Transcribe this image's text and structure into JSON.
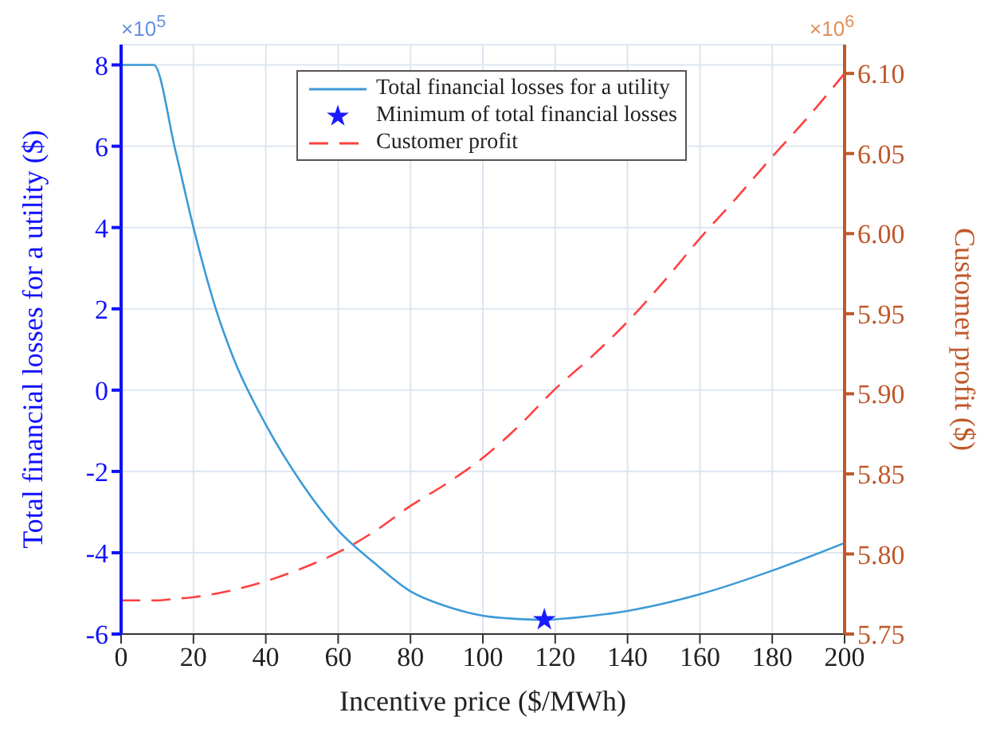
{
  "chart_data": {
    "type": "line",
    "xlabel": "Incentive price ($/MWh)",
    "ylabel": "Total financial losses for a utility ($)",
    "y2label": "Customer profit ($)",
    "annotations": [
      "×10$^{5}$",
      "×10$^{6}$"
    ],
    "xlim": [
      0,
      200
    ],
    "xticks": [
      0,
      20,
      40,
      60,
      80,
      100,
      120,
      140,
      160,
      180,
      200
    ],
    "ylim": [
      -6,
      8.5
    ],
    "yticks": [
      -6,
      -4,
      -2,
      0,
      2,
      4,
      6,
      8
    ],
    "y2lim": [
      5.75,
      6.118
    ],
    "y2ticks": [
      {
        "value": 5.75,
        "label": "5.75"
      },
      {
        "value": 5.8,
        "label": "5.80"
      },
      {
        "value": 5.85,
        "label": "5.85"
      },
      {
        "value": 5.9,
        "label": "5.90"
      },
      {
        "value": 5.95,
        "label": "5.95"
      },
      {
        "value": 6.0,
        "label": "6.00"
      },
      {
        "value": 6.05,
        "label": "6.05"
      },
      {
        "value": 6.1,
        "label": "6.10"
      }
    ],
    "grid": true,
    "legend": "top right",
    "series": [
      {
        "name": "Total financial losses for a utility",
        "color": "#3d9ad6",
        "line_style": "solid",
        "marker": "none",
        "x": [
          0,
          9,
          15,
          20,
          26,
          31,
          40,
          50,
          60,
          70,
          80,
          90,
          100,
          110,
          117,
          125,
          140,
          160,
          180,
          200
        ],
        "values": [
          8,
          8,
          5.9,
          4.0,
          2.05,
          0.8,
          -0.85,
          -2.3,
          -3.45,
          -4.25,
          -4.95,
          -5.32,
          -5.55,
          -5.63,
          -5.65,
          -5.6,
          -5.43,
          -5.02,
          -4.44,
          -3.76
        ]
      },
      {
        "name": "Minimum of total financial losses",
        "type": "scatter",
        "color": "#1a1aff",
        "marker": "star",
        "x": [
          117
        ],
        "values": [
          -5.65
        ]
      },
      {
        "name": "Customer profit",
        "type": "line",
        "axis": "y2",
        "color": "#ff4040",
        "line_style": "dashed",
        "marker": "none",
        "x": [
          0,
          10,
          15,
          20,
          30,
          40,
          50,
          60,
          70,
          80,
          90,
          100,
          110,
          120,
          130,
          140,
          150,
          160,
          170,
          180,
          190,
          200
        ],
        "values": [
          5.771,
          5.771,
          5.772,
          5.773,
          5.777,
          5.783,
          5.791,
          5.801,
          5.814,
          5.83,
          5.844,
          5.86,
          5.88,
          5.903,
          5.923,
          5.945,
          5.97,
          5.997,
          6.022,
          6.048,
          6.073,
          6.1
        ]
      }
    ]
  }
}
